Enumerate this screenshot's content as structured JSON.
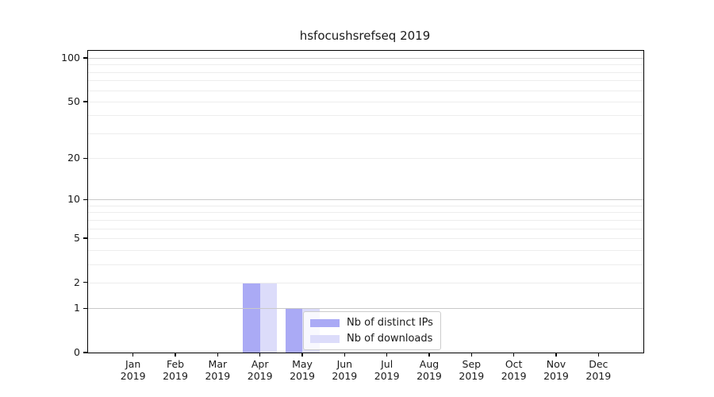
{
  "chart_data": {
    "type": "bar",
    "title": "hsfocushsrefseq 2019",
    "x": {
      "months": [
        "Jan",
        "Feb",
        "Mar",
        "Apr",
        "May",
        "Jun",
        "Jul",
        "Aug",
        "Sep",
        "Oct",
        "Nov",
        "Dec"
      ],
      "year": "2019"
    },
    "series": [
      {
        "name": "Nb of distinct IPs",
        "color": "#aaaaf5",
        "values": [
          0,
          0,
          0,
          2,
          1,
          0,
          0,
          0,
          0,
          0,
          0,
          0
        ]
      },
      {
        "name": "Nb of downloads",
        "color": "#dcdcfa",
        "values": [
          0,
          0,
          0,
          2,
          1,
          0,
          0,
          0,
          0,
          0,
          0,
          0
        ]
      }
    ],
    "y_axis": {
      "scale": "symlog",
      "ticks": [
        0,
        1,
        2,
        5,
        10,
        20,
        50,
        100
      ],
      "range": [
        0,
        112
      ]
    },
    "legend_position": "inside-bottom-center",
    "grid": "horizontal-log-minors"
  },
  "colors": {
    "bar_distinct_ips": "#aaaaf5",
    "bar_downloads": "#dcdcfa",
    "grid_minor": "#ededed",
    "grid_major": "#c9c9c9",
    "axis": "#000000",
    "text": "#1a1a1a",
    "legend_border": "#cccccc"
  }
}
